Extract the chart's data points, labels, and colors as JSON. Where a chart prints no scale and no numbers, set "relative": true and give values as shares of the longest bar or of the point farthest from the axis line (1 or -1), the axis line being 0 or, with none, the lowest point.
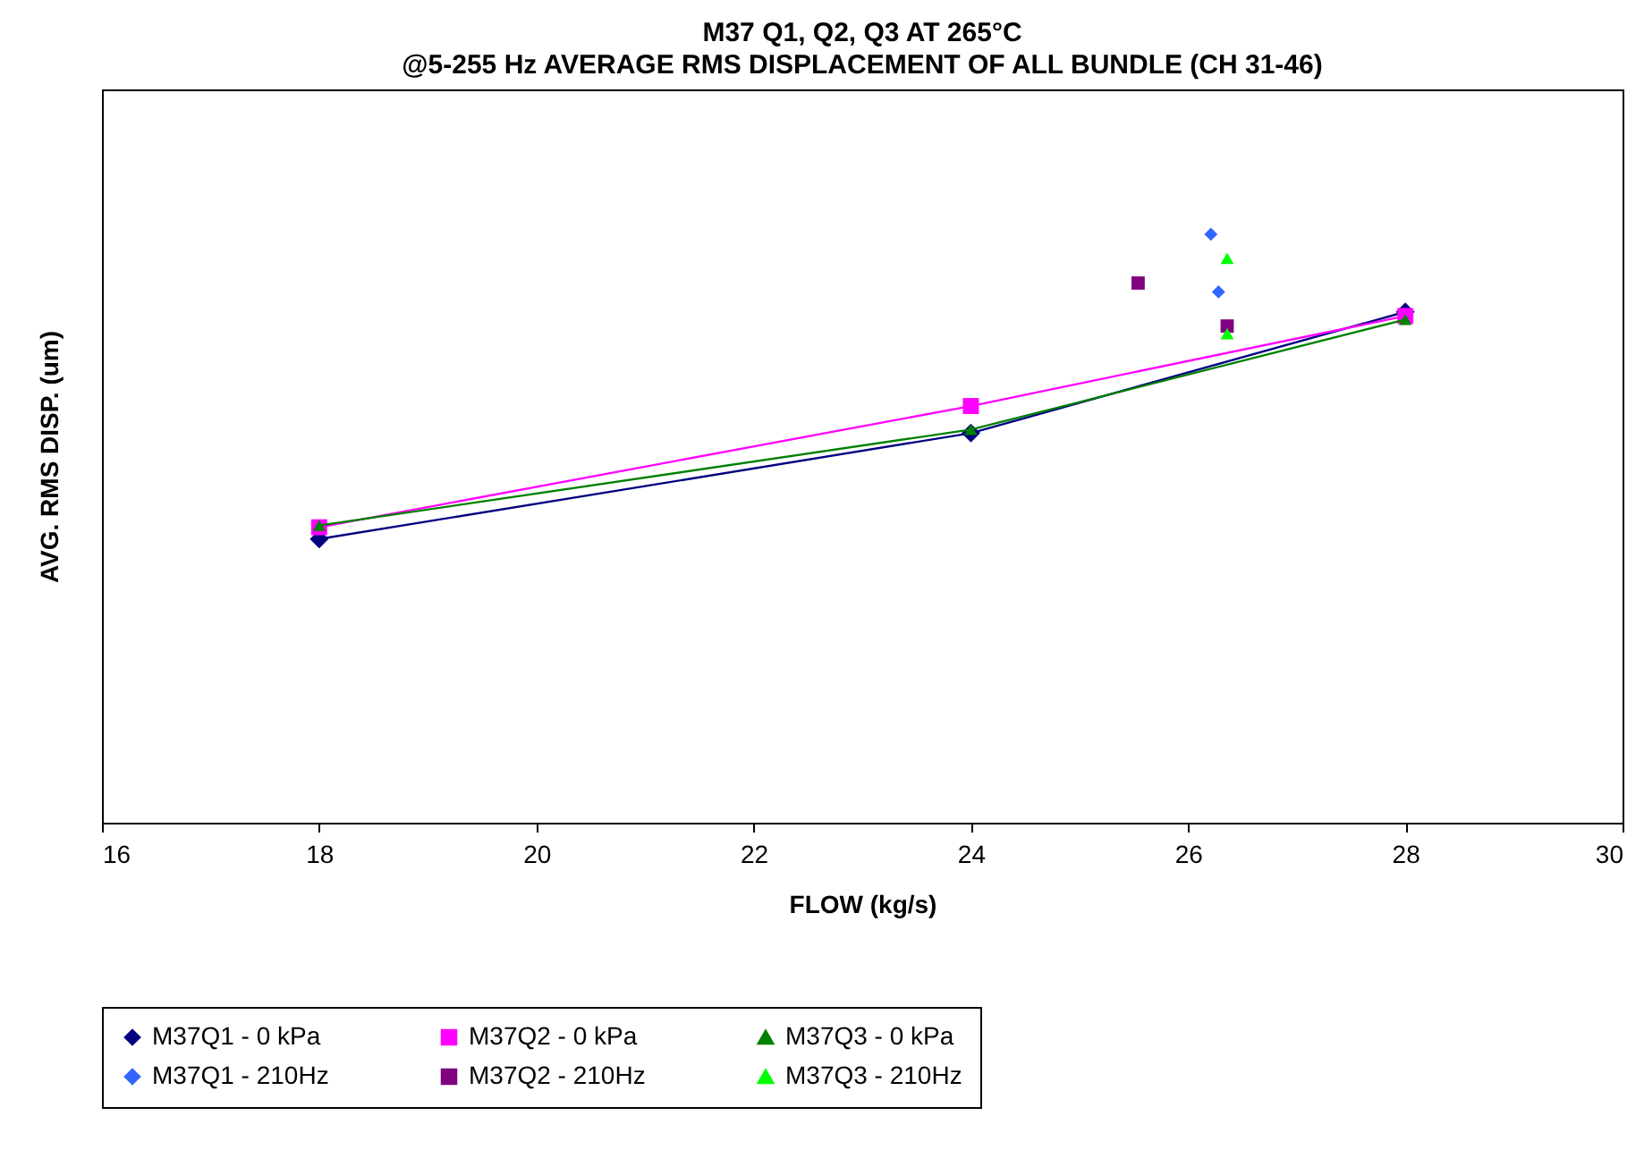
{
  "chart_data": {
    "type": "line",
    "title": "M37 Q1, Q2, Q3 AT 265°C",
    "subtitle": "@5-255 Hz AVERAGE RMS DISPLACEMENT OF ALL BUNDLE (CH 31-46)",
    "xlabel": "FLOW (kg/s)",
    "ylabel": "AVG. RMS DISP. (um)",
    "relative": true,
    "xlim": [
      16,
      30
    ],
    "xticks": [
      16,
      18,
      20,
      22,
      24,
      26,
      28,
      30
    ],
    "grid": false,
    "legend": "bottom",
    "series": [
      {
        "name": "M37Q1 - 0 kPa",
        "marker": "diamond",
        "color": "#000080",
        "x": [
          18,
          24,
          28
        ],
        "values": [
          0.482,
          0.662,
          0.868
        ]
      },
      {
        "name": "M37Q2 - 0 kPa",
        "marker": "square",
        "color": "#ff00ff",
        "x": [
          18,
          24,
          28
        ],
        "values": [
          0.502,
          0.708,
          0.861
        ]
      },
      {
        "name": "M37Q3 - 0 kPa",
        "marker": "triangle",
        "color": "#008000",
        "x": [
          18,
          24,
          28
        ],
        "values": [
          0.505,
          0.668,
          0.855
        ]
      },
      {
        "name": "M37Q1 - 210Hz",
        "type": "scatter",
        "marker": "diamond",
        "color": "#3366ff",
        "x": [
          26.21,
          26.28
        ],
        "values": [
          1.0,
          0.902
        ]
      },
      {
        "name": "M37Q2 - 210Hz",
        "type": "scatter",
        "marker": "square",
        "color": "#800080",
        "x": [
          25.54,
          26.36
        ],
        "values": [
          0.917,
          0.844
        ]
      },
      {
        "name": "M37Q3 - 210Hz",
        "type": "scatter",
        "marker": "triangle",
        "color": "#00ff00",
        "x": [
          26.36,
          26.36
        ],
        "values": [
          0.959,
          0.831
        ]
      }
    ]
  }
}
